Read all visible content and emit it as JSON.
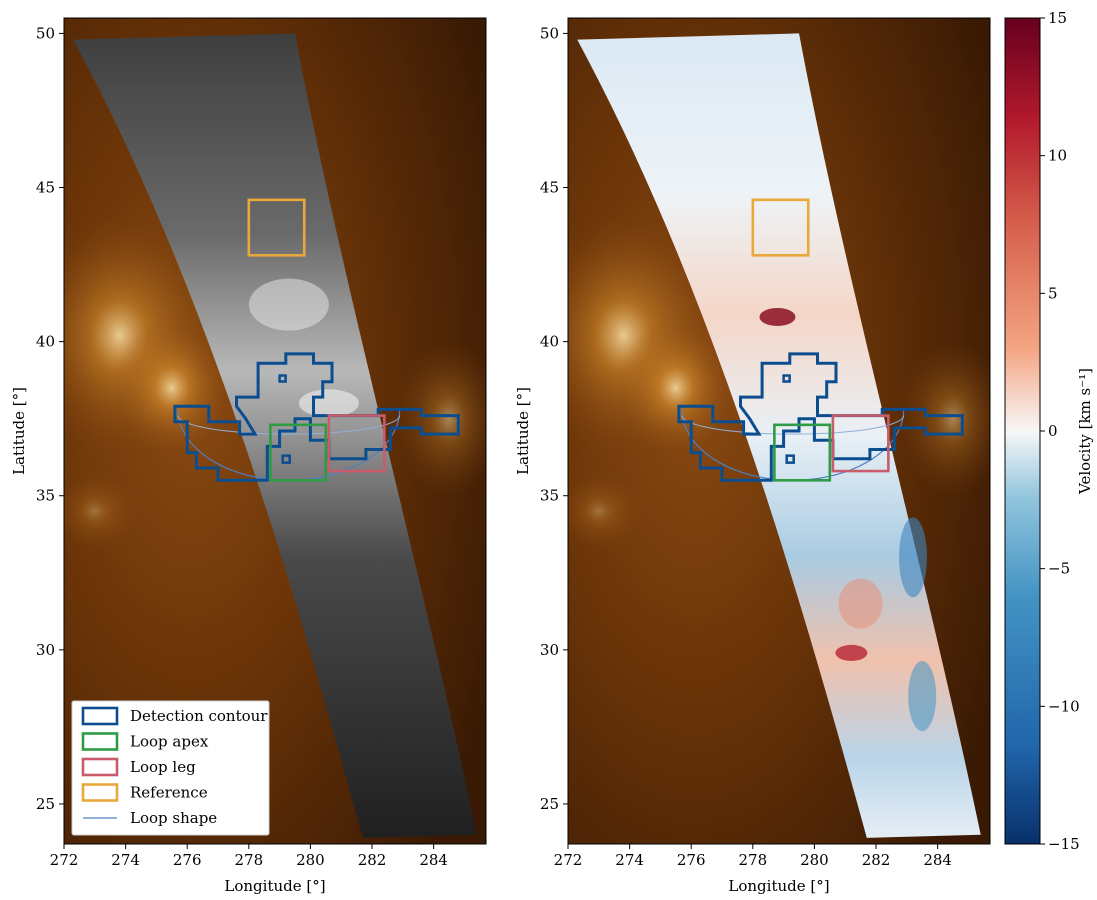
{
  "chart_data": [
    {
      "type": "heatmap",
      "panel": "left",
      "description_visible": "EUV context image with grayscale spectral slit intensity overlay",
      "xlabel": "Longitude [°]",
      "ylabel": "Latitude [°]",
      "xlim": [
        272,
        285.7
      ],
      "ylim": [
        23.7,
        50.5
      ],
      "xticks": [
        272,
        274,
        276,
        278,
        280,
        282,
        284
      ],
      "yticks": [
        25,
        30,
        35,
        40,
        45,
        50
      ],
      "legend": {
        "placement": "bottom-left",
        "entries": [
          {
            "label": "Detection contour",
            "color": "#0b4d8f",
            "kind": "box"
          },
          {
            "label": "Loop apex",
            "color": "#2e9b45",
            "kind": "box"
          },
          {
            "label": "Loop leg",
            "color": "#c85b6c",
            "kind": "box"
          },
          {
            "label": "Reference",
            "color": "#e9a93a",
            "kind": "box"
          },
          {
            "label": "Loop shape",
            "color": "#4f7fc0",
            "kind": "line"
          }
        ]
      },
      "regions": {
        "reference": {
          "lon": [
            278.0,
            279.8
          ],
          "lat": [
            42.8,
            44.6
          ]
        },
        "loop_apex": {
          "lon": [
            278.7,
            280.5
          ],
          "lat": [
            35.5,
            37.3
          ]
        },
        "loop_leg": {
          "lon": [
            280.6,
            282.4
          ],
          "lat": [
            35.8,
            37.6
          ]
        }
      }
    },
    {
      "type": "heatmap",
      "panel": "right",
      "xlabel": "Longitude [°]",
      "ylabel": "Latitude [°]",
      "xlim": [
        272,
        285.7
      ],
      "ylim": [
        23.7,
        50.5
      ],
      "xticks": [
        272,
        274,
        276,
        278,
        280,
        282,
        284
      ],
      "yticks": [
        25,
        30,
        35,
        40,
        45,
        50
      ],
      "colorbar": {
        "label": "Velocity [km s⁻¹]",
        "range": [
          -15,
          15
        ],
        "ticks": [
          -15,
          -10,
          -5,
          0,
          5,
          10,
          15
        ],
        "tick_labels": [
          "−15",
          "−10",
          "−5",
          "0",
          "5",
          "10",
          "15"
        ],
        "colormap": [
          "#08306b",
          "#2166ac",
          "#4393c3",
          "#92c5de",
          "#f7f7f7",
          "#f4a582",
          "#d6604d",
          "#b2182b",
          "#67001f"
        ]
      },
      "regions": {
        "reference": {
          "lon": [
            278.0,
            279.8
          ],
          "lat": [
            42.8,
            44.6
          ]
        },
        "loop_apex": {
          "lon": [
            278.7,
            280.5
          ],
          "lat": [
            35.5,
            37.3
          ]
        },
        "loop_leg": {
          "lon": [
            280.6,
            282.4
          ],
          "lat": [
            35.8,
            37.6
          ]
        }
      }
    }
  ],
  "colors": {
    "detection": "#0b4d8f",
    "apex": "#2e9b45",
    "leg": "#c85b6c",
    "reference": "#e9a93a",
    "loop_shape": "#4f7fc0",
    "euv_background": "#5a2a06"
  }
}
